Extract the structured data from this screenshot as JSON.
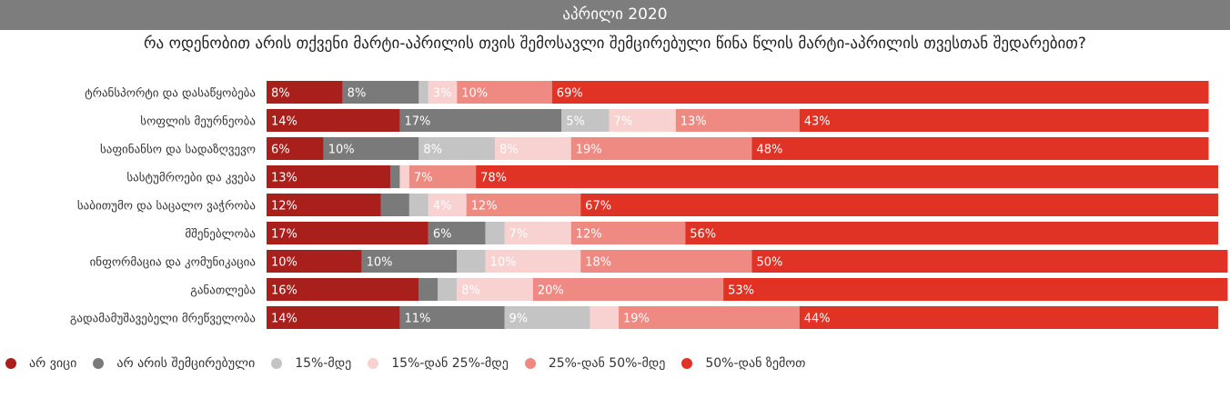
{
  "header": {
    "title": "აპრილი 2020"
  },
  "question": "რა ოდენობით არის თქვენი მარტი-აპრილის თვის შემოსავლი შემცირებული წინა წლის მარტი-აპრილის თვესთან შედარებით?",
  "chart_data": {
    "type": "bar",
    "orientation": "horizontal",
    "stacked": true,
    "title": "",
    "xlabel": "",
    "ylabel": "",
    "xlim": [
      0,
      100
    ],
    "grid": false,
    "legend_position": "bottom",
    "categories": [
      "ტრანსპორტი და დასაწყობება",
      "სოფლის მეურნეობა",
      "საფინანსო და სადაზღვევო",
      "სასტუმროები და კვება",
      "საბითუმო და საცალო ვაჭრობა",
      "მშენებლობა",
      "ინფორმაცია და კომუნიკაცია",
      "განათლება",
      "გადამამუშავებელი მრეწველობა"
    ],
    "series": [
      {
        "name": "არ ვიცი",
        "color": "#a81f1c",
        "values": [
          8,
          14,
          6,
          13,
          12,
          17,
          10,
          16,
          14
        ],
        "labels": [
          "8%",
          "14%",
          "6%",
          "13%",
          "12%",
          "17%",
          "10%",
          "16%",
          "14%"
        ]
      },
      {
        "name": "არ არის შემცირებული",
        "color": "#7a7a7a",
        "values": [
          8,
          17,
          10,
          1,
          3,
          6,
          10,
          2,
          11
        ],
        "labels": [
          "8%",
          "17%",
          "10%",
          "",
          "",
          "6%",
          "10%",
          "",
          "11%"
        ]
      },
      {
        "name": "15%-მდე",
        "color": "#c4c4c4",
        "values": [
          1,
          5,
          8,
          0,
          2,
          2,
          3,
          2,
          9
        ],
        "labels": [
          "",
          "5%",
          "8%",
          "",
          "",
          "",
          "",
          "",
          "9%"
        ]
      },
      {
        "name": "15%-დან 25%-მდე",
        "color": "#f8d2d0",
        "values": [
          3,
          7,
          8,
          1,
          4,
          7,
          10,
          8,
          3
        ],
        "labels": [
          "3%",
          "7%",
          "8%",
          "",
          "4%",
          "7%",
          "10%",
          "8%",
          ""
        ]
      },
      {
        "name": "25%-დან 50%-მდე",
        "color": "#ef8a83",
        "values": [
          10,
          13,
          19,
          7,
          12,
          12,
          18,
          20,
          19
        ],
        "labels": [
          "10%",
          "13%",
          "19%",
          "7%",
          "12%",
          "12%",
          "18%",
          "20%",
          "19%"
        ]
      },
      {
        "name": "50%-დან ზემოთ",
        "color": "#e03325",
        "values": [
          69,
          43,
          48,
          78,
          67,
          56,
          50,
          53,
          44
        ],
        "labels": [
          "69%",
          "43%",
          "48%",
          "78%",
          "67%",
          "56%",
          "50%",
          "53%",
          "44%"
        ]
      }
    ]
  }
}
